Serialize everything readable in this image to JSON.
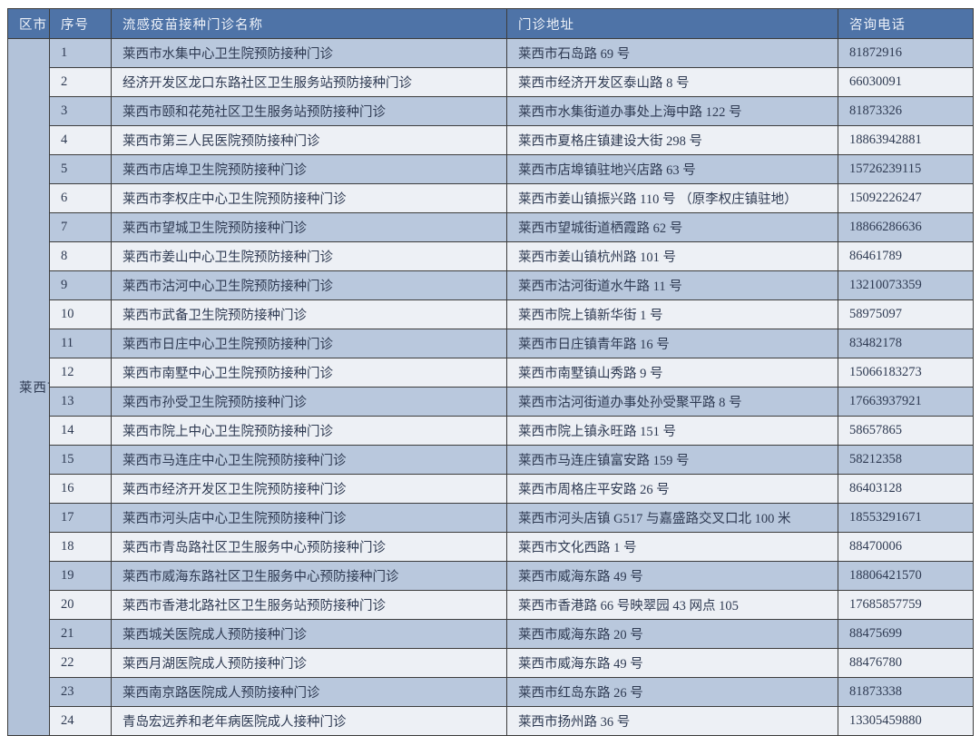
{
  "table": {
    "region_label": "莱西市",
    "columns": {
      "region": "区市",
      "no": "序号",
      "name": "流感疫苗接种门诊名称",
      "address": "门诊地址",
      "phone": "咨询电话"
    },
    "rows": [
      {
        "no": "1",
        "name": "莱西市水集中心卫生院预防接种门诊",
        "address": "莱西市石岛路 69 号",
        "phone": "81872916"
      },
      {
        "no": "2",
        "name": "经济开发区龙口东路社区卫生服务站预防接种门诊",
        "address": "莱西市经济开发区泰山路 8 号",
        "phone": "66030091"
      },
      {
        "no": "3",
        "name": "莱西市颐和花苑社区卫生服务站预防接种门诊",
        "address": "莱西市水集街道办事处上海中路 122 号",
        "phone": "81873326"
      },
      {
        "no": "4",
        "name": "莱西市第三人民医院预防接种门诊",
        "address": "莱西市夏格庄镇建设大街 298 号",
        "phone": "18863942881"
      },
      {
        "no": "5",
        "name": "莱西市店埠卫生院预防接种门诊",
        "address": "莱西市店埠镇驻地兴店路 63 号",
        "phone": "15726239115"
      },
      {
        "no": "6",
        "name": "莱西市李权庄中心卫生院预防接种门诊",
        "address": "莱西市姜山镇振兴路 110 号 （原李权庄镇驻地）",
        "phone": "15092226247"
      },
      {
        "no": "7",
        "name": "莱西市望城卫生院预防接种门诊",
        "address": "莱西市望城街道栖霞路 62 号",
        "phone": "18866286636"
      },
      {
        "no": "8",
        "name": "莱西市姜山中心卫生院预防接种门诊",
        "address": "莱西市姜山镇杭州路 101 号",
        "phone": "86461789"
      },
      {
        "no": "9",
        "name": "莱西市沽河中心卫生院预防接种门诊",
        "address": "莱西市沽河街道水牛路 11 号",
        "phone": "13210073359"
      },
      {
        "no": "10",
        "name": "莱西市武备卫生院预防接种门诊",
        "address": "莱西市院上镇新华街 1 号",
        "phone": "58975097"
      },
      {
        "no": "11",
        "name": "莱西市日庄中心卫生院预防接种门诊",
        "address": "莱西市日庄镇青年路 16 号",
        "phone": "83482178"
      },
      {
        "no": "12",
        "name": "莱西市南墅中心卫生院预防接种门诊",
        "address": "莱西市南墅镇山秀路 9 号",
        "phone": "15066183273"
      },
      {
        "no": "13",
        "name": "莱西市孙受卫生院预防接种门诊",
        "address": "莱西市沽河街道办事处孙受聚平路 8 号",
        "phone": "17663937921"
      },
      {
        "no": "14",
        "name": "莱西市院上中心卫生院预防接种门诊",
        "address": "莱西市院上镇永旺路 151 号",
        "phone": "58657865"
      },
      {
        "no": "15",
        "name": "莱西市马连庄中心卫生院预防接种门诊",
        "address": "莱西市马连庄镇富安路 159 号",
        "phone": "58212358"
      },
      {
        "no": "16",
        "name": "莱西市经济开发区卫生院预防接种门诊",
        "address": "莱西市周格庄平安路 26 号",
        "phone": "86403128"
      },
      {
        "no": "17",
        "name": "莱西市河头店中心卫生院预防接种门诊",
        "address": "莱西市河头店镇 G517 与嘉盛路交叉口北 100 米",
        "phone": "18553291671"
      },
      {
        "no": "18",
        "name": "莱西市青岛路社区卫生服务中心预防接种门诊",
        "address": "莱西市文化西路 1 号",
        "phone": "88470006"
      },
      {
        "no": "19",
        "name": "莱西市威海东路社区卫生服务中心预防接种门诊",
        "address": "莱西市威海东路 49 号",
        "phone": "18806421570"
      },
      {
        "no": "20",
        "name": "莱西市香港北路社区卫生服务站预防接种门诊",
        "address": "莱西市香港路 66 号映翠园 43 网点 105",
        "phone": "17685857759"
      },
      {
        "no": "21",
        "name": "莱西城关医院成人预防接种门诊",
        "address": "莱西市威海东路 20 号",
        "phone": "88475699"
      },
      {
        "no": "22",
        "name": "莱西月湖医院成人预防接种门诊",
        "address": "莱西市威海东路 49 号",
        "phone": "88476780"
      },
      {
        "no": "23",
        "name": "莱西南京路医院成人预防接种门诊",
        "address": "莱西市红岛东路 26 号",
        "phone": "81873338"
      },
      {
        "no": "24",
        "name": "青岛宏远养和老年病医院成人接种门诊",
        "address": "莱西市扬州路 36 号",
        "phone": "13305459880"
      }
    ]
  },
  "colors": {
    "header_bg": "#4e73a7",
    "header_text": "#eef2f9",
    "row_odd_bg": "#b9c8dd",
    "row_even_bg": "#edf0f5",
    "region_cell_bg": "#b2c2d9",
    "body_text": "#2e3a52",
    "border": "#3d3d3d"
  }
}
